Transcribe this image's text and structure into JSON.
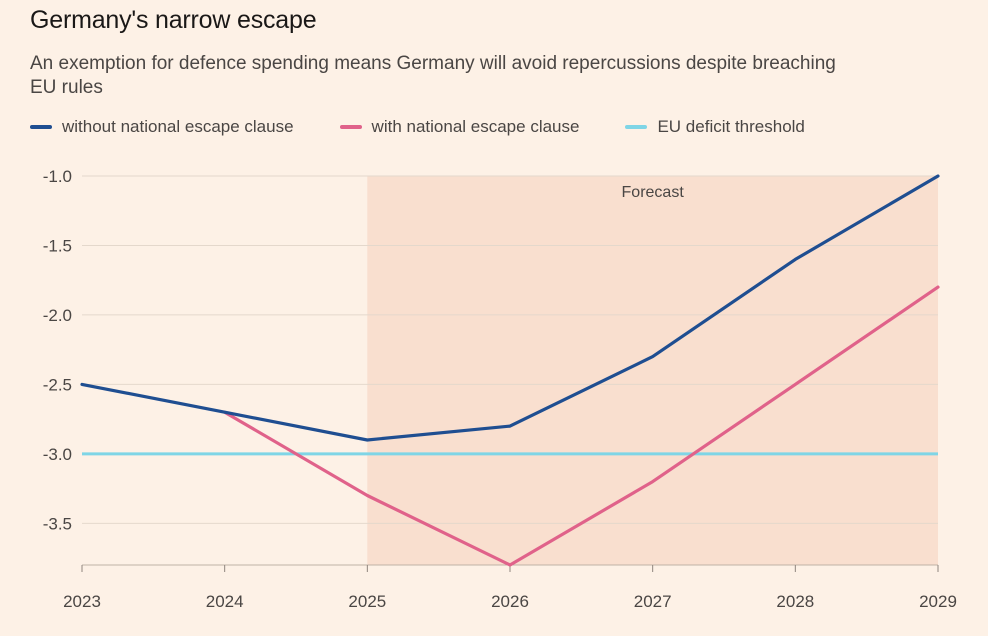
{
  "chart_data": {
    "type": "line",
    "title": "Germany's narrow escape",
    "subtitle": "An exemption for defence spending means Germany will avoid repercussions despite breaching EU rules",
    "x": [
      2023,
      2024,
      2025,
      2026,
      2027,
      2028,
      2029
    ],
    "x_tick_labels": [
      "2023",
      "2024",
      "2025",
      "2026",
      "2027",
      "2028",
      "2029"
    ],
    "y_ticks": [
      -1.0,
      -1.5,
      -2.0,
      -2.5,
      -3.0,
      -3.5
    ],
    "y_tick_labels": [
      "-1.0",
      "-1.5",
      "-2.0",
      "-2.5",
      "-3.0",
      "-3.5"
    ],
    "ylim": [
      -3.8,
      -1.0
    ],
    "xlabel": "",
    "ylabel": "",
    "grid": true,
    "legend_position": "top-left",
    "series": [
      {
        "name": "without national escape clause",
        "color": "#1f4e91",
        "values": [
          -2.5,
          -2.7,
          -2.9,
          -2.8,
          -2.3,
          -1.6,
          -1.0
        ]
      },
      {
        "name": "with national escape clause",
        "color": "#e0628a",
        "values": [
          null,
          -2.7,
          -3.3,
          -3.8,
          -3.2,
          -2.5,
          -1.8
        ]
      }
    ],
    "threshold": {
      "name": "EU deficit threshold",
      "color": "#7fd5e6",
      "value": -3.0
    },
    "forecast_region": {
      "label": "Forecast",
      "x_start": 2025,
      "x_end": 2029,
      "color": "#f9dfcf"
    }
  }
}
